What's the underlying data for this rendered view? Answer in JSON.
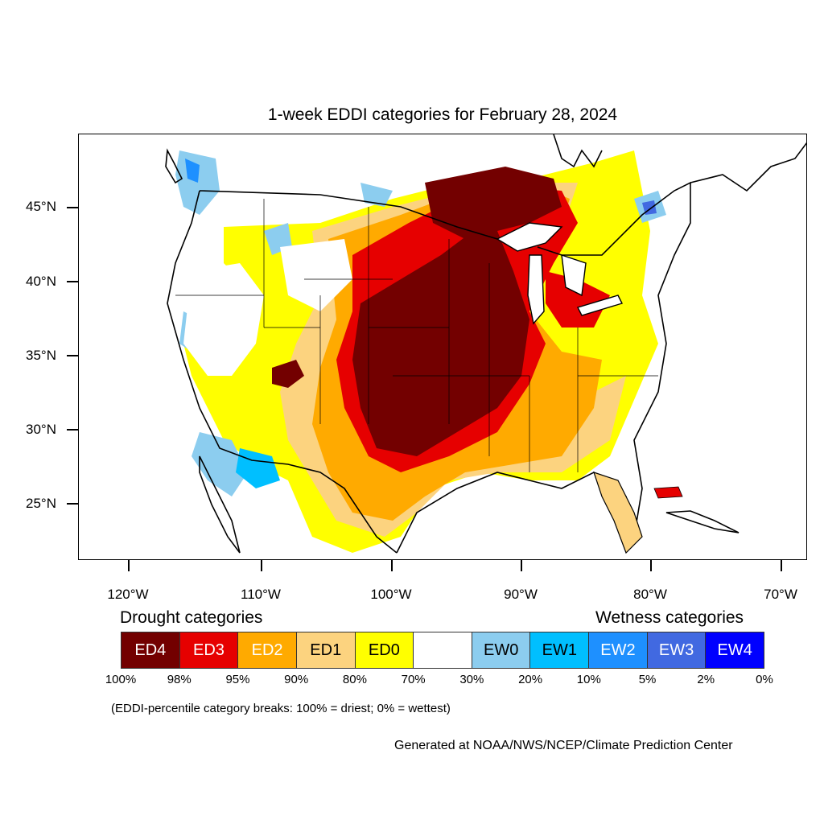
{
  "title": "1-week EDDI categories for February 28, 2024",
  "map": {
    "lat_labels": [
      "45°N",
      "40°N",
      "35°N",
      "30°N",
      "25°N"
    ],
    "lon_labels": [
      "120°W",
      "110°W",
      "100°W",
      "90°W",
      "80°W",
      "70°W"
    ]
  },
  "legend": {
    "drought_heading": "Drought categories",
    "wetness_heading": "Wetness categories",
    "categories": [
      {
        "label": "ED4",
        "color": "#730000",
        "text_color": "#ffffff"
      },
      {
        "label": "ED3",
        "color": "#e60000",
        "text_color": "#ffffff"
      },
      {
        "label": "ED2",
        "color": "#ffaa00",
        "text_color": "#ffffff"
      },
      {
        "label": "ED1",
        "color": "#fcd37f",
        "text_color": "#000000"
      },
      {
        "label": "ED0",
        "color": "#ffff00",
        "text_color": "#000000"
      },
      {
        "label": "",
        "color": "#ffffff",
        "text_color": "#000000"
      },
      {
        "label": "EW0",
        "color": "#8ccdef",
        "text_color": "#000000"
      },
      {
        "label": "EW1",
        "color": "#00bfff",
        "text_color": "#000000"
      },
      {
        "label": "EW2",
        "color": "#1e90ff",
        "text_color": "#ffffff"
      },
      {
        "label": "EW3",
        "color": "#4169e1",
        "text_color": "#ffffff"
      },
      {
        "label": "EW4",
        "color": "#0000ff",
        "text_color": "#ffffff"
      }
    ],
    "percentiles": [
      "100%",
      "98%",
      "95%",
      "90%",
      "80%",
      "70%",
      "30%",
      "20%",
      "10%",
      "5%",
      "2%",
      "0%"
    ]
  },
  "breaks_note": "(EDDI-percentile category breaks: 100% = driest; 0% = wettest)",
  "credit": "Generated at NOAA/NWS/NCEP/Climate Prediction Center"
}
